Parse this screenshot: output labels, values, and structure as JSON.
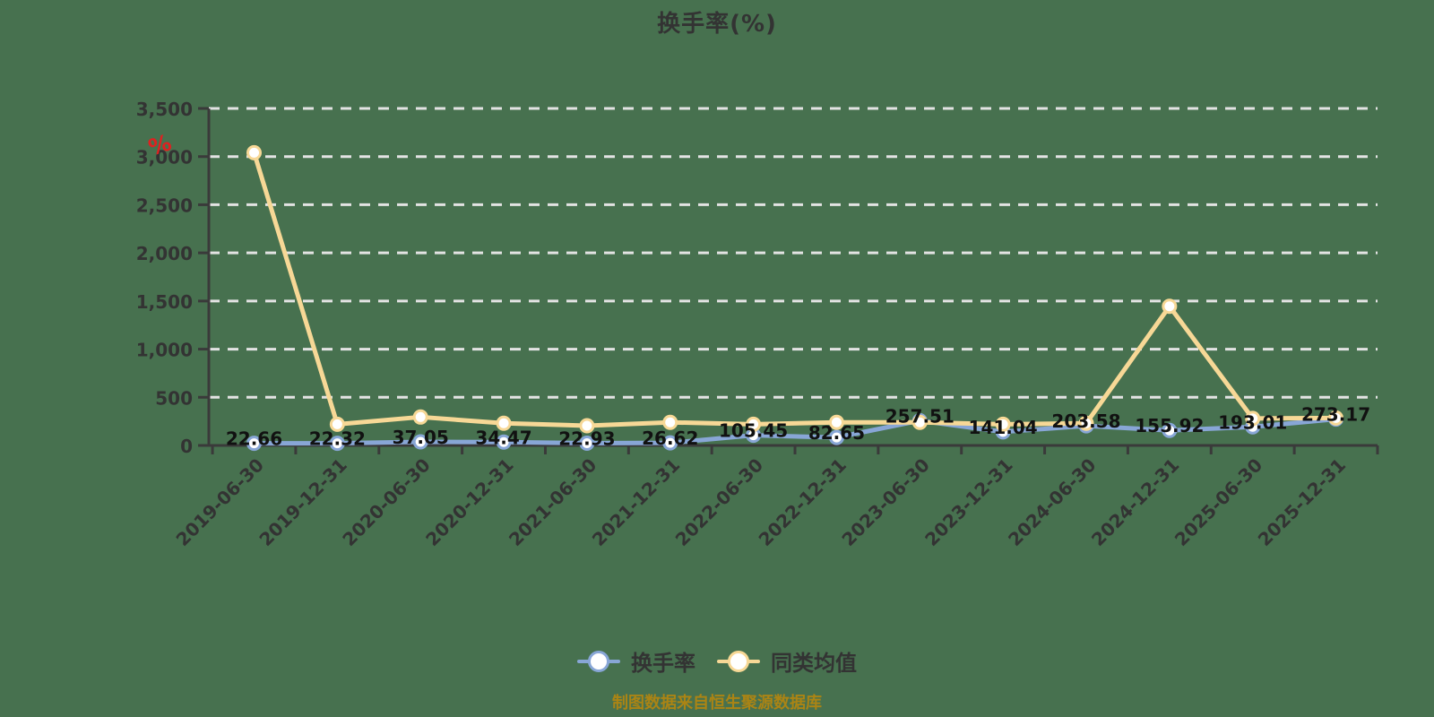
{
  "caption": "制图数据来自恒生聚源数据库",
  "colors": {
    "background": "#47714f",
    "text": "#333333",
    "grid": "#e3e3e3",
    "axis": "#3a3a3a",
    "data_label": "#111111",
    "caption": "#ab8414",
    "unit_red": "#e02020",
    "series_turnover": "#88a6d6",
    "series_peer": "#f7d896",
    "marker_fill": "#ffffff"
  },
  "chart_data": {
    "type": "line",
    "title": "换手率(%)",
    "y_unit": "%",
    "categories": [
      "2019-06-30",
      "2019-12-31",
      "2020-06-30",
      "2020-12-31",
      "2021-06-30",
      "2021-12-31",
      "2022-06-30",
      "2022-12-31",
      "2023-06-30",
      "2023-12-31",
      "2024-06-30",
      "2024-12-31",
      "2025-06-30",
      "2025-12-31"
    ],
    "series": [
      {
        "name": "换手率",
        "color": "#88a6d6",
        "show_labels": true,
        "values": [
          22.66,
          22.32,
          37.05,
          34.47,
          22.93,
          26.62,
          105.45,
          82.65,
          257.51,
          141.04,
          203.58,
          155.92,
          193.01,
          273.17
        ]
      },
      {
        "name": "同类均值",
        "color": "#f7d896",
        "show_labels": false,
        "values": [
          3040,
          220,
          295,
          230,
          205,
          240,
          220,
          240,
          240,
          220,
          230,
          1445,
          280,
          285
        ]
      }
    ],
    "ylim": [
      0,
      3500
    ],
    "y_tick_step": 500,
    "y_tick_labels": [
      "0",
      "500",
      "1,000",
      "1,500",
      "2,000",
      "2,500",
      "3,000",
      "3,500"
    ],
    "grid": "horizontal dashed",
    "legend_position": "bottom",
    "x_label_rotation": -45
  }
}
